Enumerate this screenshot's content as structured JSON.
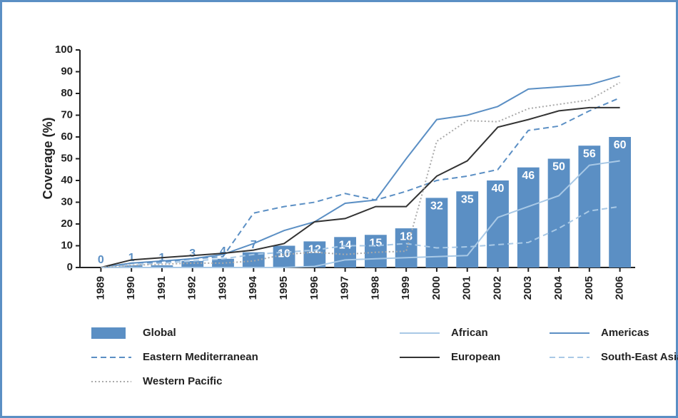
{
  "chart_data": {
    "type": "bar",
    "y_label": "Coverage (%)",
    "categories": [
      "1989",
      "1990",
      "1991",
      "1992",
      "1993",
      "1994",
      "1995",
      "1996",
      "1997",
      "1998",
      "1999",
      "2000",
      "2001",
      "2002",
      "2003",
      "2004",
      "2005",
      "2006"
    ],
    "bars": {
      "name": "Global",
      "color": "#5b8fc4",
      "values": [
        0,
        1,
        1,
        3,
        4,
        7,
        10,
        12,
        14,
        15,
        18,
        32,
        35,
        40,
        46,
        50,
        56,
        60
      ]
    },
    "series": [
      {
        "name": "African",
        "color": "#a9c9e6",
        "dash": "solid",
        "values": [
          0,
          0,
          0,
          0,
          0,
          0,
          0,
          0.5,
          3.5,
          4,
          4.5,
          5,
          5.5,
          23,
          28,
          33,
          47,
          49
        ]
      },
      {
        "name": "Americas",
        "color": "#5b8fc4",
        "dash": "solid",
        "values": [
          0,
          2,
          3,
          4,
          6,
          11,
          17,
          21,
          29.5,
          31,
          50,
          68,
          70,
          74,
          82,
          83,
          84,
          88
        ]
      },
      {
        "name": "Eastern Mediterranean",
        "color": "#5b8fc4",
        "dash": "dashed",
        "values": [
          0,
          2,
          2.5,
          4,
          5,
          25,
          28,
          30,
          34,
          31,
          35,
          40,
          42,
          45,
          63,
          65,
          72,
          78
        ]
      },
      {
        "name": "European",
        "color": "#333333",
        "dash": "solid",
        "values": [
          0,
          3.5,
          4.5,
          5.5,
          6.5,
          8,
          11,
          21,
          22.5,
          28,
          28,
          42,
          49,
          64.5,
          68,
          72,
          73.5,
          73.5
        ]
      },
      {
        "name": "South-East Asia",
        "color": "#a9c9e6",
        "dash": "dashed",
        "values": [
          0,
          1,
          2,
          3,
          4,
          6,
          7,
          8,
          10,
          10,
          11,
          9,
          9.5,
          10.5,
          11.5,
          18,
          26,
          28
        ]
      },
      {
        "name": "Western Pacific",
        "color": "#aaaaaa",
        "dash": "dotted",
        "values": [
          0,
          1,
          1.5,
          2,
          2,
          3,
          6,
          7,
          6,
          7,
          7.5,
          58,
          67.5,
          67,
          73,
          75,
          77,
          85
        ]
      }
    ],
    "ylim": [
      0,
      100
    ],
    "yticks": [
      0,
      10,
      20,
      30,
      40,
      50,
      60,
      70,
      80,
      90,
      100
    ]
  }
}
